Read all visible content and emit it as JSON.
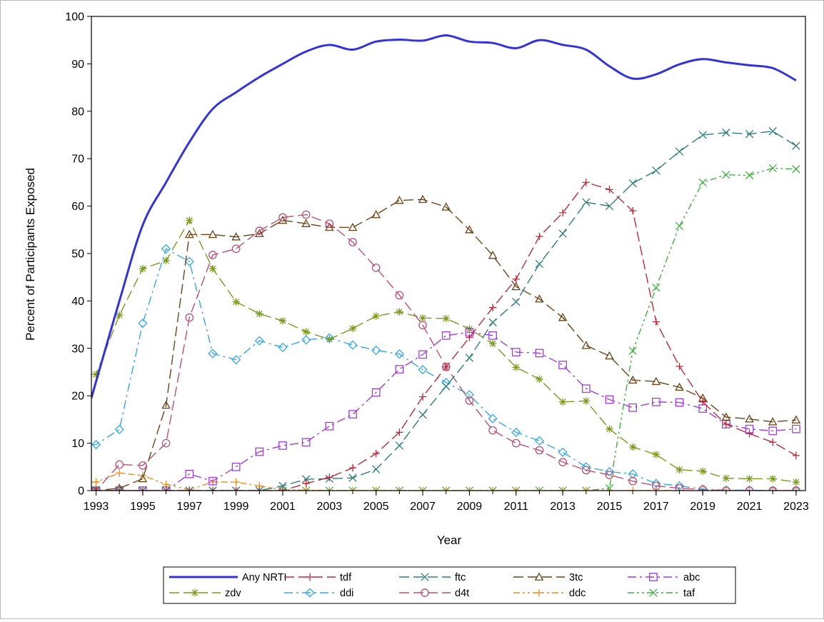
{
  "chart_data": {
    "type": "line",
    "title": "",
    "xlabel": "Year",
    "ylabel": "Percent of Participants Exposed",
    "xlim": [
      1992.8,
      2023.4
    ],
    "ylim": [
      0,
      100
    ],
    "x_ticks": [
      1993,
      1995,
      1997,
      1999,
      2001,
      2003,
      2005,
      2007,
      2009,
      2011,
      2013,
      2015,
      2017,
      2019,
      2021,
      2023
    ],
    "y_ticks": [
      0,
      10,
      20,
      30,
      40,
      50,
      60,
      70,
      80,
      90,
      100
    ],
    "legend_position": "bottom",
    "x": [
      1993,
      1994,
      1995,
      1996,
      1997,
      1998,
      1999,
      2000,
      2001,
      2002,
      2003,
      2004,
      2005,
      2006,
      2007,
      2008,
      2009,
      2010,
      2011,
      2012,
      2013,
      2014,
      2015,
      2016,
      2017,
      2018,
      2019,
      2020,
      2021,
      2022,
      2023
    ],
    "series": [
      {
        "name": "Any NRTI",
        "color": "#3333dd",
        "marker": "none",
        "dash": "solid",
        "values": [
          23,
          40,
          56,
          65,
          73.5,
          80.5,
          84,
          87.2,
          90,
          92.6,
          94,
          93,
          94.7,
          95.1,
          94.9,
          96,
          94.7,
          94.4,
          93.3,
          95,
          94,
          93,
          89.5,
          86.9,
          87.8,
          89.9,
          91,
          90.3,
          89.7,
          89.1,
          86.5
        ]
      },
      {
        "name": "tdf",
        "color": "#c0293b",
        "marker": "plus",
        "dash": "longdash",
        "values": [
          0,
          0,
          0,
          0,
          0,
          0,
          0,
          0,
          0,
          1.5,
          2.8,
          4.8,
          7.8,
          12.3,
          19.8,
          26.1,
          32.3,
          38.6,
          44.6,
          53.6,
          58.6,
          65,
          63.5,
          59,
          35.6,
          26.2,
          18.7,
          14,
          12,
          10.2,
          7.4
        ]
      },
      {
        "name": "ftc",
        "color": "#2e7d7d",
        "marker": "x",
        "dash": "longdash",
        "values": [
          0,
          0,
          0,
          0,
          0,
          0,
          0,
          0,
          1,
          2.4,
          2.5,
          2.7,
          4.5,
          9.5,
          16,
          22,
          28,
          35.5,
          39.8,
          47.8,
          54.2,
          60.8,
          60,
          64.8,
          67.5,
          71.5,
          75,
          75.5,
          75.2,
          75.8,
          72.7
        ]
      },
      {
        "name": "3tc",
        "color": "#6b4316",
        "marker": "triangle",
        "dash": "longdash",
        "values": [
          0,
          0.5,
          2.5,
          18,
          54,
          54,
          53.5,
          54.2,
          57,
          56.3,
          55.5,
          55.5,
          58.2,
          61.2,
          61.4,
          59.8,
          55,
          49.6,
          43,
          40.4,
          36.5,
          30.6,
          28.4,
          23.3,
          23,
          21.8,
          19.5,
          15.5,
          15.1,
          14.5,
          14.9
        ]
      },
      {
        "name": "abc",
        "color": "#a23ce0",
        "marker": "square",
        "dash": "dashdot",
        "values": [
          0,
          0,
          0,
          0,
          3.5,
          2,
          5,
          8.2,
          9.5,
          10.2,
          13.6,
          16.1,
          20.7,
          25.6,
          28.7,
          32.7,
          33.4,
          32.7,
          29.2,
          29,
          26.5,
          21.5,
          19.2,
          17.5,
          18.7,
          18.6,
          17.3,
          14,
          13,
          12.6,
          13
        ]
      },
      {
        "name": "zdv",
        "color": "#7b9b1e",
        "marker": "asterisk",
        "dash": "longdash",
        "values": [
          24.5,
          37,
          46.8,
          48.5,
          57,
          46.8,
          39.8,
          37.3,
          35.8,
          33.5,
          31.9,
          34.2,
          36.8,
          37.7,
          36.4,
          36.3,
          34.1,
          31,
          26,
          23.5,
          18.7,
          18.9,
          13,
          9.2,
          7.6,
          4.4,
          4.1,
          2.6,
          2.5,
          2.5,
          1.8
        ]
      },
      {
        "name": "ddi",
        "color": "#33a8f0",
        "marker": "diamond",
        "dash": "dashdot",
        "values": [
          9.7,
          12.9,
          35.3,
          51,
          48.3,
          28.9,
          27.6,
          31.6,
          30.2,
          31.8,
          32.2,
          30.7,
          29.6,
          28.8,
          25.5,
          22.8,
          20.2,
          15.2,
          12.3,
          10.5,
          8.1,
          5,
          4,
          3.5,
          1.5,
          1,
          0.3,
          0.1,
          0.1,
          0,
          0
        ]
      },
      {
        "name": "d4t",
        "color": "#c04e74",
        "marker": "circle",
        "dash": "longdash",
        "values": [
          0,
          5.5,
          5.3,
          10,
          36.5,
          49.7,
          51,
          54.8,
          57.6,
          58.2,
          56.3,
          52.4,
          47,
          41.2,
          34.9,
          26.1,
          19,
          12.7,
          10,
          8.5,
          6,
          4.3,
          3.3,
          2,
          1,
          0.5,
          0.2,
          0,
          0,
          0,
          0
        ]
      },
      {
        "name": "ddc",
        "color": "#f08c1e",
        "marker": "plus",
        "dash": "dashdotdot",
        "values": [
          1.8,
          3.7,
          3.2,
          1.3,
          0.2,
          1.8,
          1.8,
          1,
          0.2,
          0.1,
          0,
          0,
          0,
          0,
          0,
          0,
          0,
          0,
          0,
          0,
          0,
          0,
          0,
          0,
          0,
          0,
          0,
          0,
          0,
          0,
          0
        ]
      },
      {
        "name": "taf",
        "color": "#3fb23f",
        "marker": "x",
        "dash": "dashdotdot",
        "values": [
          0,
          0,
          0,
          0,
          0,
          0,
          0,
          0,
          0,
          0,
          0,
          0,
          0,
          0,
          0,
          0,
          0,
          0,
          0,
          0,
          0,
          0,
          0.5,
          29.5,
          42.8,
          55.8,
          65,
          66.6,
          66.5,
          68,
          67.8
        ]
      }
    ]
  }
}
